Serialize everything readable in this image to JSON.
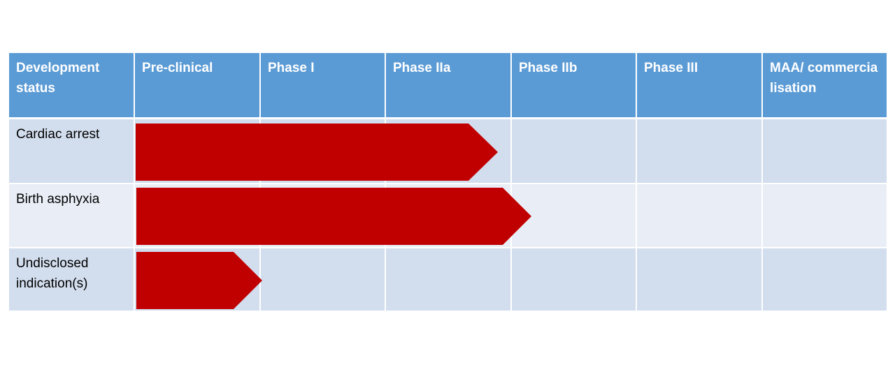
{
  "table": {
    "header": [
      "Development status",
      "Pre-clinical",
      "Phase I",
      "Phase IIa",
      "Phase IIb",
      "Phase III",
      "MAA/ commercialisation"
    ],
    "rows": [
      [
        "Cardiac arrest"
      ],
      [
        "Birth asphyxia"
      ],
      [
        "Undisclosed indication(s)"
      ]
    ]
  }
}
